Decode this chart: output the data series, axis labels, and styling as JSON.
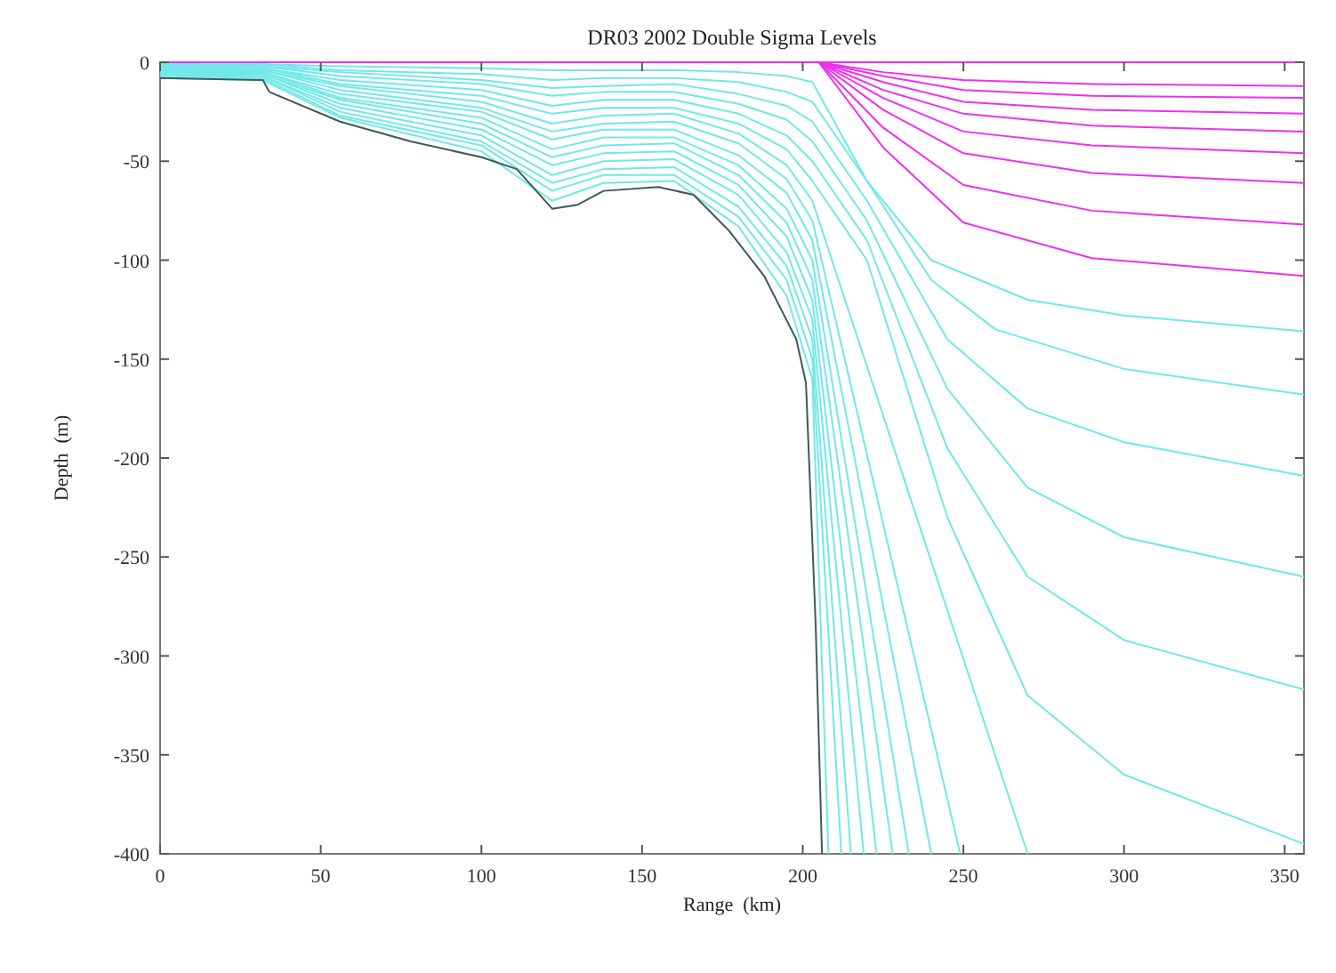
{
  "chart_data": {
    "type": "line",
    "title": "DR03 2002 Double Sigma Levels",
    "xlabel": "Range  (km)",
    "ylabel": "Depth  (m)",
    "xlim": [
      0,
      356
    ],
    "ylim": [
      -400,
      0
    ],
    "xticks": [
      0,
      50,
      100,
      150,
      200,
      250,
      300,
      350
    ],
    "yticks": [
      -400,
      -350,
      -300,
      -250,
      -200,
      -150,
      -100,
      -50,
      0
    ],
    "grid": false,
    "marker": "none",
    "line_style": "solid",
    "series": [
      {
        "color": "#ee30ee",
        "x": [
          0,
          356
        ],
        "values": [
          0,
          0
        ]
      },
      {
        "color": "#ee30ee",
        "x": [
          205,
          225,
          250,
          290,
          356
        ],
        "values": [
          0,
          -5,
          -9,
          -11,
          -12
        ]
      },
      {
        "color": "#ee30ee",
        "x": [
          205,
          225,
          250,
          290,
          356
        ],
        "values": [
          0,
          -7,
          -14,
          -17,
          -18
        ]
      },
      {
        "color": "#ee30ee",
        "x": [
          205,
          225,
          250,
          290,
          356
        ],
        "values": [
          0,
          -10,
          -20,
          -24,
          -26
        ]
      },
      {
        "color": "#ee30ee",
        "x": [
          205,
          225,
          250,
          290,
          356
        ],
        "values": [
          0,
          -14,
          -26,
          -32,
          -35
        ]
      },
      {
        "color": "#ee30ee",
        "x": [
          205,
          225,
          250,
          290,
          356
        ],
        "values": [
          0,
          -18,
          -35,
          -42,
          -46
        ]
      },
      {
        "color": "#ee30ee",
        "x": [
          205,
          225,
          250,
          290,
          356
        ],
        "values": [
          0,
          -24,
          -46,
          -56,
          -61
        ]
      },
      {
        "color": "#ee30ee",
        "x": [
          205,
          225,
          250,
          290,
          356
        ],
        "values": [
          0,
          -33,
          -62,
          -75,
          -82
        ]
      },
      {
        "color": "#ee30ee",
        "x": [
          205,
          225,
          250,
          290,
          356
        ],
        "values": [
          0,
          -43,
          -81,
          -99,
          -108
        ]
      },
      {
        "color": "#70e8e8",
        "x": [
          0,
          32,
          56,
          100,
          122,
          138,
          160,
          180,
          195,
          203,
          220,
          240,
          270,
          300,
          356
        ],
        "values": [
          -1,
          -1,
          -2,
          -3,
          -4,
          -4,
          -4,
          -5,
          -7,
          -10,
          -60,
          -100,
          -120,
          -128,
          -136
        ]
      },
      {
        "color": "#70e8e8",
        "x": [
          0,
          32,
          56,
          100,
          122,
          138,
          160,
          180,
          195,
          203,
          220,
          240,
          260,
          300,
          356
        ],
        "values": [
          -1,
          -1,
          -4,
          -6,
          -9,
          -8,
          -8,
          -10,
          -15,
          -20,
          -60,
          -110,
          -135,
          -155,
          -168
        ]
      },
      {
        "color": "#70e8e8",
        "x": [
          0,
          32,
          56,
          100,
          122,
          138,
          160,
          180,
          195,
          203,
          220,
          245,
          270,
          300,
          356
        ],
        "values": [
          -1,
          -2,
          -5,
          -9,
          -13,
          -12,
          -11,
          -16,
          -22,
          -30,
          -70,
          -140,
          -175,
          -192,
          -209
        ]
      },
      {
        "color": "#70e8e8",
        "x": [
          0,
          32,
          56,
          100,
          122,
          138,
          160,
          180,
          195,
          203,
          220,
          245,
          270,
          300,
          356
        ],
        "values": [
          -2,
          -2,
          -7,
          -11,
          -17,
          -15,
          -15,
          -21,
          -29,
          -40,
          -80,
          -165,
          -215,
          -240,
          -260
        ]
      },
      {
        "color": "#70e8e8",
        "x": [
          0,
          32,
          56,
          100,
          122,
          138,
          160,
          180,
          195,
          203,
          220,
          245,
          270,
          300,
          356
        ],
        "values": [
          -2,
          -3,
          -9,
          -14,
          -22,
          -19,
          -19,
          -26,
          -37,
          -50,
          -90,
          -195,
          -260,
          -292,
          -317
        ]
      },
      {
        "color": "#70e8e8",
        "x": [
          0,
          32,
          56,
          100,
          122,
          138,
          160,
          180,
          195,
          203,
          220,
          245,
          270,
          300,
          356
        ],
        "values": [
          -3,
          -3,
          -11,
          -17,
          -26,
          -23,
          -23,
          -31,
          -44,
          -60,
          -100,
          -230,
          -320,
          -360,
          -395
        ]
      },
      {
        "color": "#70e8e8",
        "x": [
          0,
          32,
          56,
          100,
          122,
          138,
          160,
          180,
          195,
          203,
          270
        ],
        "values": [
          -3,
          -4,
          -12,
          -20,
          -31,
          -27,
          -26,
          -36,
          -52,
          -70,
          -400
        ]
      },
      {
        "color": "#70e8e8",
        "x": [
          0,
          32,
          56,
          100,
          122,
          138,
          160,
          180,
          195,
          203,
          249
        ],
        "values": [
          -4,
          -4,
          -14,
          -23,
          -35,
          -31,
          -30,
          -41,
          -59,
          -80,
          -400
        ]
      },
      {
        "color": "#70e8e8",
        "x": [
          0,
          32,
          56,
          100,
          122,
          138,
          160,
          180,
          195,
          203,
          240
        ],
        "values": [
          -4,
          -5,
          -16,
          -25,
          -39,
          -34,
          -34,
          -47,
          -66,
          -90,
          -400
        ]
      },
      {
        "color": "#70e8e8",
        "x": [
          0,
          32,
          56,
          100,
          122,
          138,
          160,
          180,
          195,
          203,
          233
        ],
        "values": [
          -5,
          -5,
          -18,
          -28,
          -44,
          -38,
          -38,
          -52,
          -74,
          -100,
          -400
        ]
      },
      {
        "color": "#70e8e8",
        "x": [
          0,
          32,
          56,
          100,
          122,
          138,
          160,
          180,
          195,
          203,
          228
        ],
        "values": [
          -5,
          -6,
          -19,
          -31,
          -48,
          -42,
          -41,
          -57,
          -81,
          -110,
          -400
        ]
      },
      {
        "color": "#70e8e8",
        "x": [
          0,
          32,
          56,
          100,
          122,
          138,
          160,
          180,
          195,
          203,
          223
        ],
        "values": [
          -6,
          -6,
          -21,
          -34,
          -52,
          -46,
          -45,
          -62,
          -88,
          -120,
          -400
        ]
      },
      {
        "color": "#70e8e8",
        "x": [
          0,
          32,
          56,
          100,
          122,
          138,
          160,
          180,
          195,
          203,
          219
        ],
        "values": [
          -6,
          -7,
          -23,
          -37,
          -57,
          -50,
          -49,
          -67,
          -96,
          -130,
          -400
        ]
      },
      {
        "color": "#70e8e8",
        "x": [
          0,
          32,
          56,
          100,
          122,
          138,
          160,
          180,
          195,
          203,
          215
        ],
        "values": [
          -7,
          -7,
          -25,
          -40,
          -61,
          -54,
          -53,
          -73,
          -103,
          -140,
          -400
        ]
      },
      {
        "color": "#70e8e8",
        "x": [
          0,
          32,
          56,
          100,
          122,
          138,
          160,
          180,
          195,
          203,
          212
        ],
        "values": [
          -7,
          -8,
          -27,
          -42,
          -65,
          -57,
          -57,
          -78,
          -110,
          -150,
          -400
        ]
      },
      {
        "color": "#70e8e8",
        "x": [
          0,
          32,
          56,
          100,
          122,
          138,
          160,
          180,
          195,
          203,
          208
        ],
        "values": [
          -8,
          -9,
          -28,
          -45,
          -70,
          -61,
          -60,
          -83,
          -118,
          -160,
          -400
        ]
      },
      {
        "color": "#3c5a5a",
        "x": [
          0,
          32,
          34,
          56,
          78,
          100,
          111,
          122,
          130,
          138,
          155,
          166,
          177,
          188,
          198,
          201,
          204,
          206
        ],
        "values": [
          -8,
          -9,
          -15,
          -30,
          -40,
          -48,
          -54,
          -74,
          -72,
          -65,
          -63,
          -67,
          -85,
          -108,
          -140,
          -162,
          -283,
          -400
        ]
      }
    ]
  }
}
